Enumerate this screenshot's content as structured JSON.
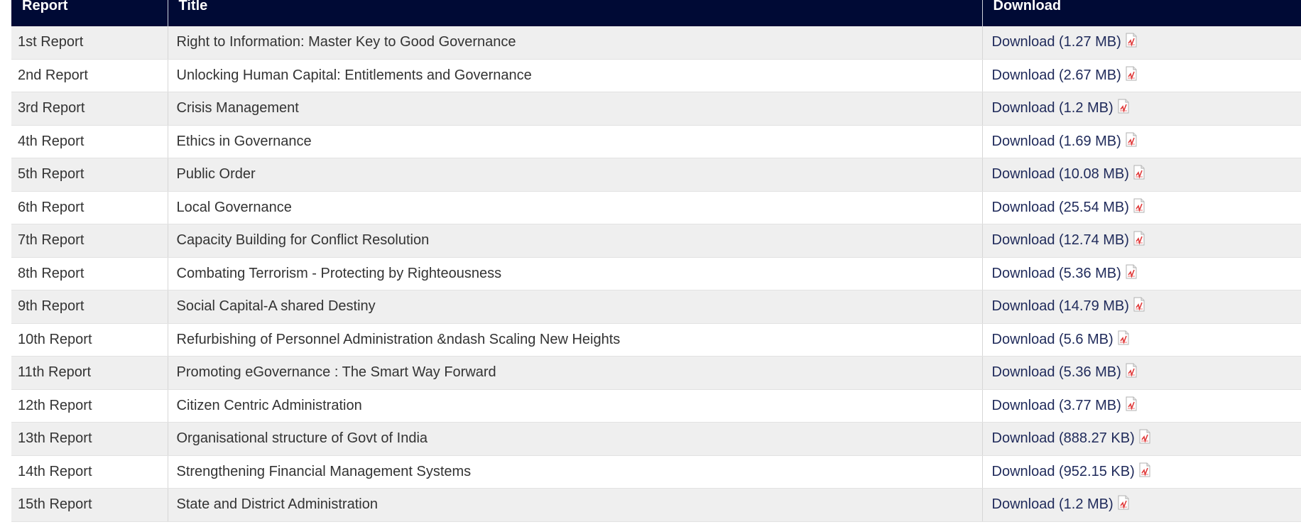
{
  "table": {
    "headers": {
      "report": "Report",
      "title": "Title",
      "download": "Download"
    },
    "download_label": "Download",
    "rows": [
      {
        "report": "1st Report",
        "title": "Right to Information: Master Key to Good Governance",
        "download": "Download (1.27 MB)"
      },
      {
        "report": "2nd Report",
        "title": "Unlocking Human Capital: Entitlements and Governance",
        "download": "Download (2.67 MB)"
      },
      {
        "report": "3rd Report",
        "title": "Crisis Management",
        "download": "Download (1.2 MB)"
      },
      {
        "report": "4th Report",
        "title": "Ethics in Governance",
        "download": "Download (1.69 MB)"
      },
      {
        "report": "5th Report",
        "title": "Public Order",
        "download": "Download (10.08 MB)"
      },
      {
        "report": "6th Report",
        "title": "Local Governance",
        "download": "Download (25.54 MB)"
      },
      {
        "report": "7th Report",
        "title": "Capacity Building for Conflict Resolution",
        "download": "Download (12.74 MB)"
      },
      {
        "report": "8th Report",
        "title": "Combating Terrorism - Protecting by Righteousness",
        "download": "Download (5.36 MB)"
      },
      {
        "report": "9th Report",
        "title": "Social Capital-A shared Destiny",
        "download": "Download (14.79 MB)"
      },
      {
        "report": "10th Report",
        "title": "Refurbishing of Personnel Administration &ndash Scaling New Heights",
        "download": "Download (5.6 MB)"
      },
      {
        "report": "11th Report",
        "title": "Promoting eGovernance : The Smart Way Forward",
        "download": "Download (5.36 MB)"
      },
      {
        "report": "12th Report",
        "title": "Citizen Centric Administration",
        "download": "Download (3.77 MB)"
      },
      {
        "report": "13th Report",
        "title": "Organisational structure of Govt of India",
        "download": "Download (888.27 KB)"
      },
      {
        "report": "14th Report",
        "title": "Strengthening Financial Management Systems",
        "download": "Download (952.15 KB)"
      },
      {
        "report": "15th Report",
        "title": "State and District Administration",
        "download": "Download (1.2 MB)"
      }
    ]
  },
  "icons": {
    "pdf": "pdf-file-icon"
  },
  "colors": {
    "header_bg": "#000a35",
    "row_alt": "#efefef",
    "link": "#1f2a5a",
    "pdf_red": "#e03a3a"
  }
}
